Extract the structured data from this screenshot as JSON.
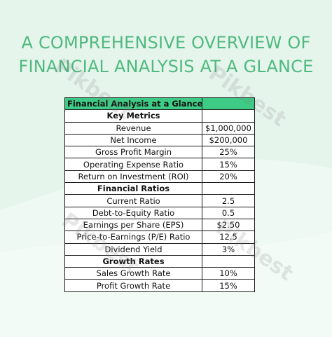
{
  "headline": {
    "line1": "A COMPREHENSIVE OVERVIEW OF",
    "line2": "FINANCIAL ANALYSIS AT A GLANCE"
  },
  "table": {
    "title": "Financial Analysis at a Glance",
    "rows": [
      {
        "type": "section",
        "label": "Key Metrics",
        "value": ""
      },
      {
        "type": "item",
        "label": "Revenue",
        "value": "$1,000,000"
      },
      {
        "type": "item",
        "label": "Net Income",
        "value": "$200,000"
      },
      {
        "type": "item",
        "label": "Gross Profit Margin",
        "value": "25%"
      },
      {
        "type": "item",
        "label": "Operating Expense Ratio",
        "value": "15%"
      },
      {
        "type": "item",
        "label": "Return on Investment (ROI)",
        "value": "20%"
      },
      {
        "type": "section",
        "label": "Financial Ratios",
        "value": ""
      },
      {
        "type": "item",
        "label": "Current Ratio",
        "value": "2.5"
      },
      {
        "type": "item",
        "label": "Debt-to-Equity Ratio",
        "value": "0.5"
      },
      {
        "type": "item",
        "label": "Earnings per Share (EPS)",
        "value": "$2.50"
      },
      {
        "type": "item",
        "label": "Price-to-Earnings (P/E) Ratio",
        "value": "12.5"
      },
      {
        "type": "item",
        "label": "Dividend Yield",
        "value": "3%"
      },
      {
        "type": "section",
        "label": "Growth Rates",
        "value": ""
      },
      {
        "type": "item",
        "label": "Sales Growth Rate",
        "value": "10%"
      },
      {
        "type": "item",
        "label": "Profit Growth Rate",
        "value": "15%"
      }
    ]
  },
  "watermark": "Pikbest",
  "colors": {
    "background": "#e6f5ec",
    "headline": "#4fb97f",
    "header_fill": "#3ecb85"
  }
}
